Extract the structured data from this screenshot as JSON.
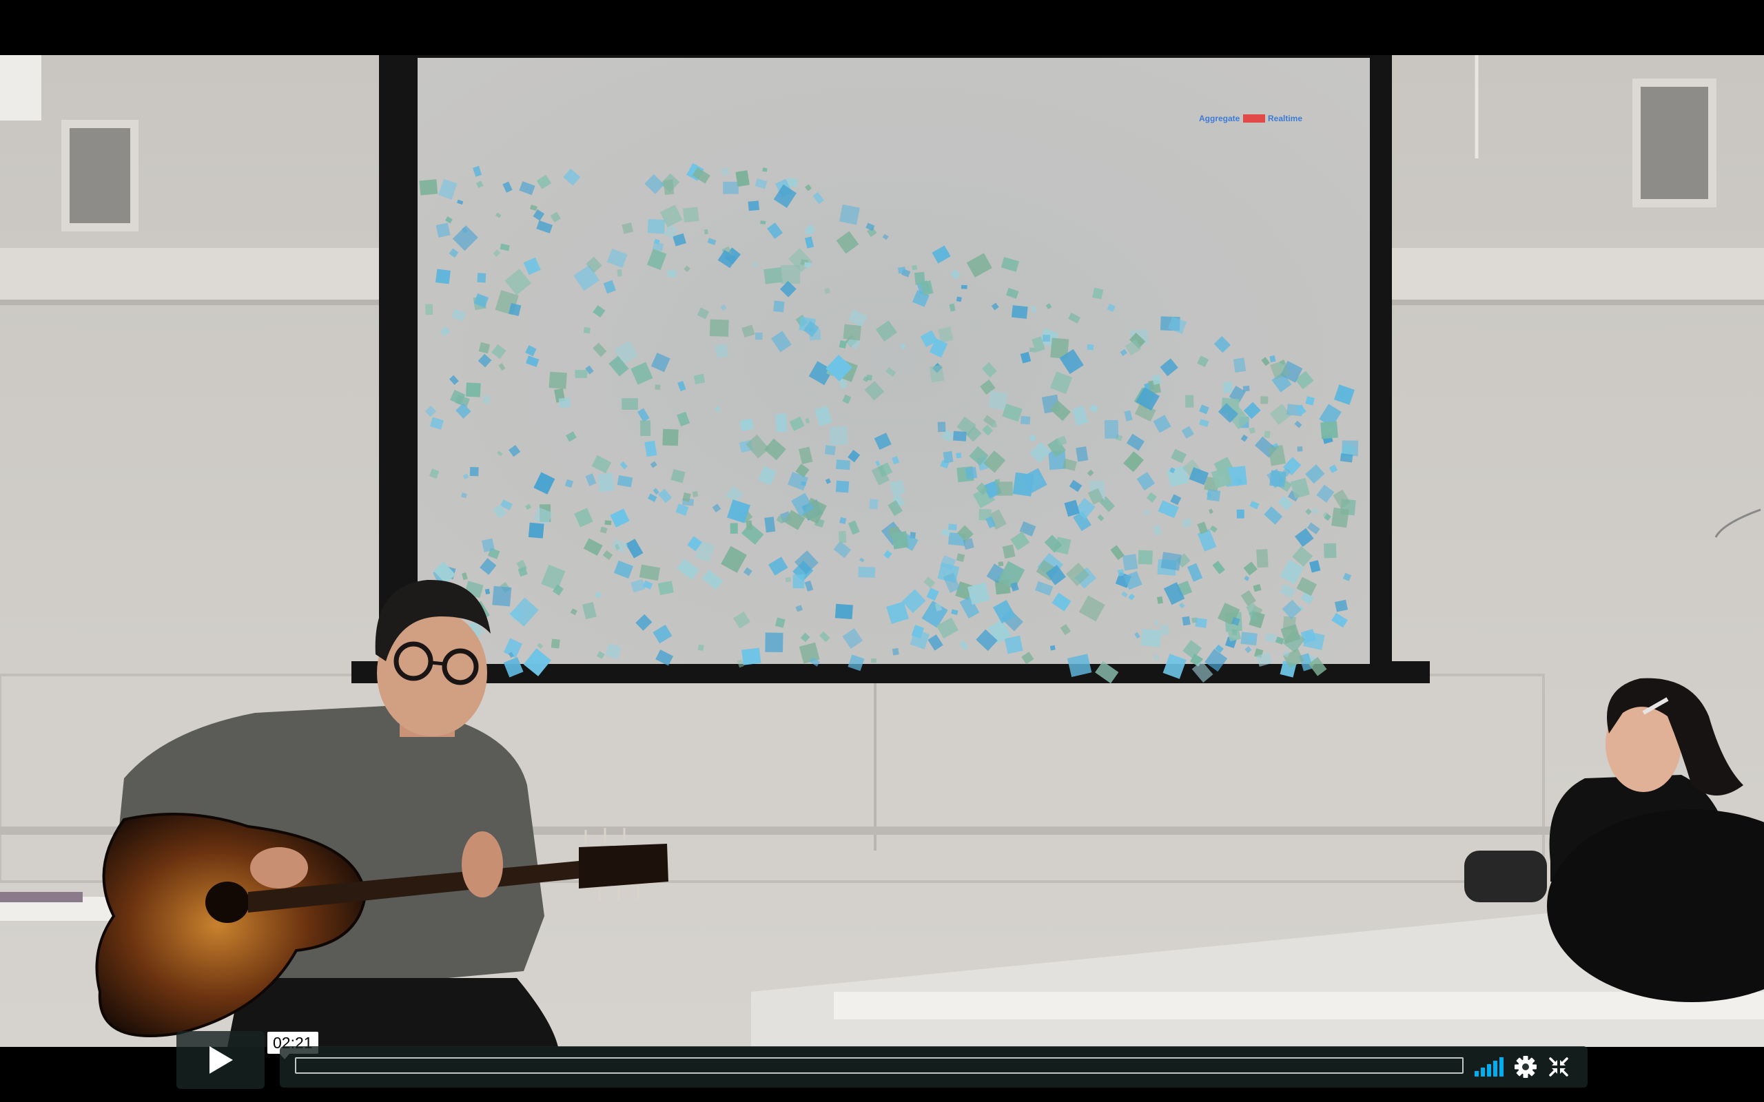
{
  "player": {
    "current_time": "02:21",
    "progress_fraction": 0.0,
    "volume_level": 1.0,
    "accent_color": "#00adef",
    "controls_bg_color": "#172322"
  },
  "screen_overlay": {
    "legend_left": "Aggregate",
    "legend_right": "Realtime"
  },
  "icons": {
    "play": "play-icon",
    "volume": "volume-bars-icon",
    "settings": "gear-icon",
    "fullscreen": "exit-fullscreen-icon"
  }
}
